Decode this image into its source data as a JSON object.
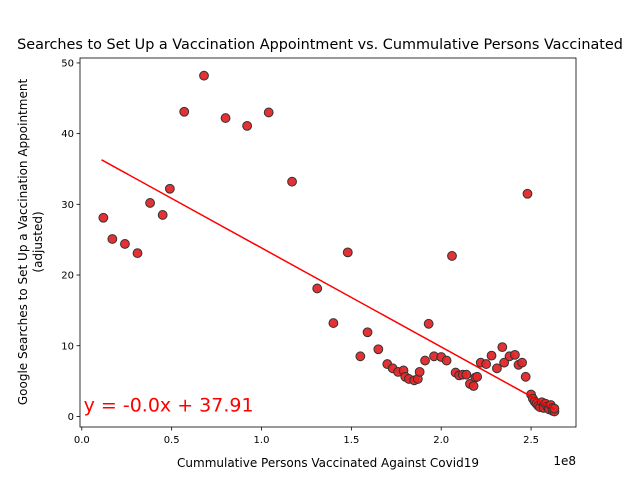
{
  "chart_data": {
    "type": "scatter",
    "title": "Searches to Set Up a Vaccination Appointment vs. Cummulative Persons Vaccinated",
    "xlabel": "Cummulative Persons Vaccinated Against Covid19",
    "ylabel_line1": "Google Searches to Set Up a Vaccination Appointment",
    "ylabel_line2": "(adjusted)",
    "x_scale_label": "1e8",
    "xlim": [
      -0.01,
      2.75
    ],
    "ylim": [
      -1.5,
      50.7
    ],
    "x_ticks": [
      0,
      0.5,
      1.0,
      1.5,
      2.0,
      2.5
    ],
    "x_tick_labels": [
      "0.0",
      "0.5",
      "1.0",
      "1.5",
      "2.0",
      "2.5"
    ],
    "y_ticks": [
      0,
      10,
      20,
      30,
      40,
      50
    ],
    "y_tick_labels": [
      "0",
      "10",
      "20",
      "30",
      "40",
      "50"
    ],
    "grid": false,
    "marker_color": "#e32628",
    "marker_edge": "#333333",
    "line_color": "#ff0000",
    "regression": {
      "equation": "y = -0.0x + 37.91",
      "x_start": 0.11,
      "y_start": 36.3,
      "x_end": 2.63,
      "y_end": 1.0,
      "label_x": 0.01,
      "label_y": 1.0
    },
    "points": [
      [
        0.12,
        28.1
      ],
      [
        0.17,
        25.1
      ],
      [
        0.24,
        24.4
      ],
      [
        0.31,
        23.1
      ],
      [
        0.38,
        30.2
      ],
      [
        0.45,
        28.5
      ],
      [
        0.49,
        32.2
      ],
      [
        0.57,
        43.1
      ],
      [
        0.68,
        48.2
      ],
      [
        0.8,
        42.2
      ],
      [
        0.92,
        41.1
      ],
      [
        1.04,
        43.0
      ],
      [
        1.17,
        33.2
      ],
      [
        1.31,
        18.1
      ],
      [
        1.4,
        13.2
      ],
      [
        1.48,
        23.2
      ],
      [
        1.55,
        8.5
      ],
      [
        1.59,
        11.9
      ],
      [
        1.65,
        9.5
      ],
      [
        1.7,
        7.4
      ],
      [
        1.73,
        6.8
      ],
      [
        1.76,
        6.3
      ],
      [
        1.79,
        6.5
      ],
      [
        1.8,
        5.6
      ],
      [
        1.82,
        5.3
      ],
      [
        1.85,
        5.1
      ],
      [
        1.87,
        5.3
      ],
      [
        1.88,
        6.3
      ],
      [
        1.91,
        7.9
      ],
      [
        1.93,
        13.1
      ],
      [
        1.96,
        8.5
      ],
      [
        2.0,
        8.4
      ],
      [
        2.03,
        7.9
      ],
      [
        2.06,
        22.7
      ],
      [
        2.08,
        6.2
      ],
      [
        2.1,
        5.8
      ],
      [
        2.12,
        5.9
      ],
      [
        2.14,
        5.9
      ],
      [
        2.16,
        4.6
      ],
      [
        2.18,
        4.3
      ],
      [
        2.19,
        5.5
      ],
      [
        2.2,
        5.6
      ],
      [
        2.22,
        7.6
      ],
      [
        2.25,
        7.4
      ],
      [
        2.28,
        8.6
      ],
      [
        2.31,
        6.8
      ],
      [
        2.34,
        9.8
      ],
      [
        2.35,
        7.6
      ],
      [
        2.38,
        8.5
      ],
      [
        2.41,
        8.7
      ],
      [
        2.43,
        7.3
      ],
      [
        2.45,
        7.6
      ],
      [
        2.47,
        5.6
      ],
      [
        2.48,
        31.5
      ],
      [
        2.5,
        3.1
      ],
      [
        2.51,
        2.5
      ],
      [
        2.52,
        2.1
      ],
      [
        2.53,
        1.8
      ],
      [
        2.54,
        1.5
      ],
      [
        2.55,
        1.3
      ],
      [
        2.56,
        2.0
      ],
      [
        2.57,
        1.6
      ],
      [
        2.57,
        1.2
      ],
      [
        2.58,
        1.8
      ],
      [
        2.59,
        1.4
      ],
      [
        2.6,
        1.3
      ],
      [
        2.6,
        1.0
      ],
      [
        2.61,
        1.6
      ],
      [
        2.62,
        1.2
      ],
      [
        2.62,
        0.8
      ],
      [
        2.63,
        0.7
      ],
      [
        2.63,
        1.1
      ]
    ]
  }
}
